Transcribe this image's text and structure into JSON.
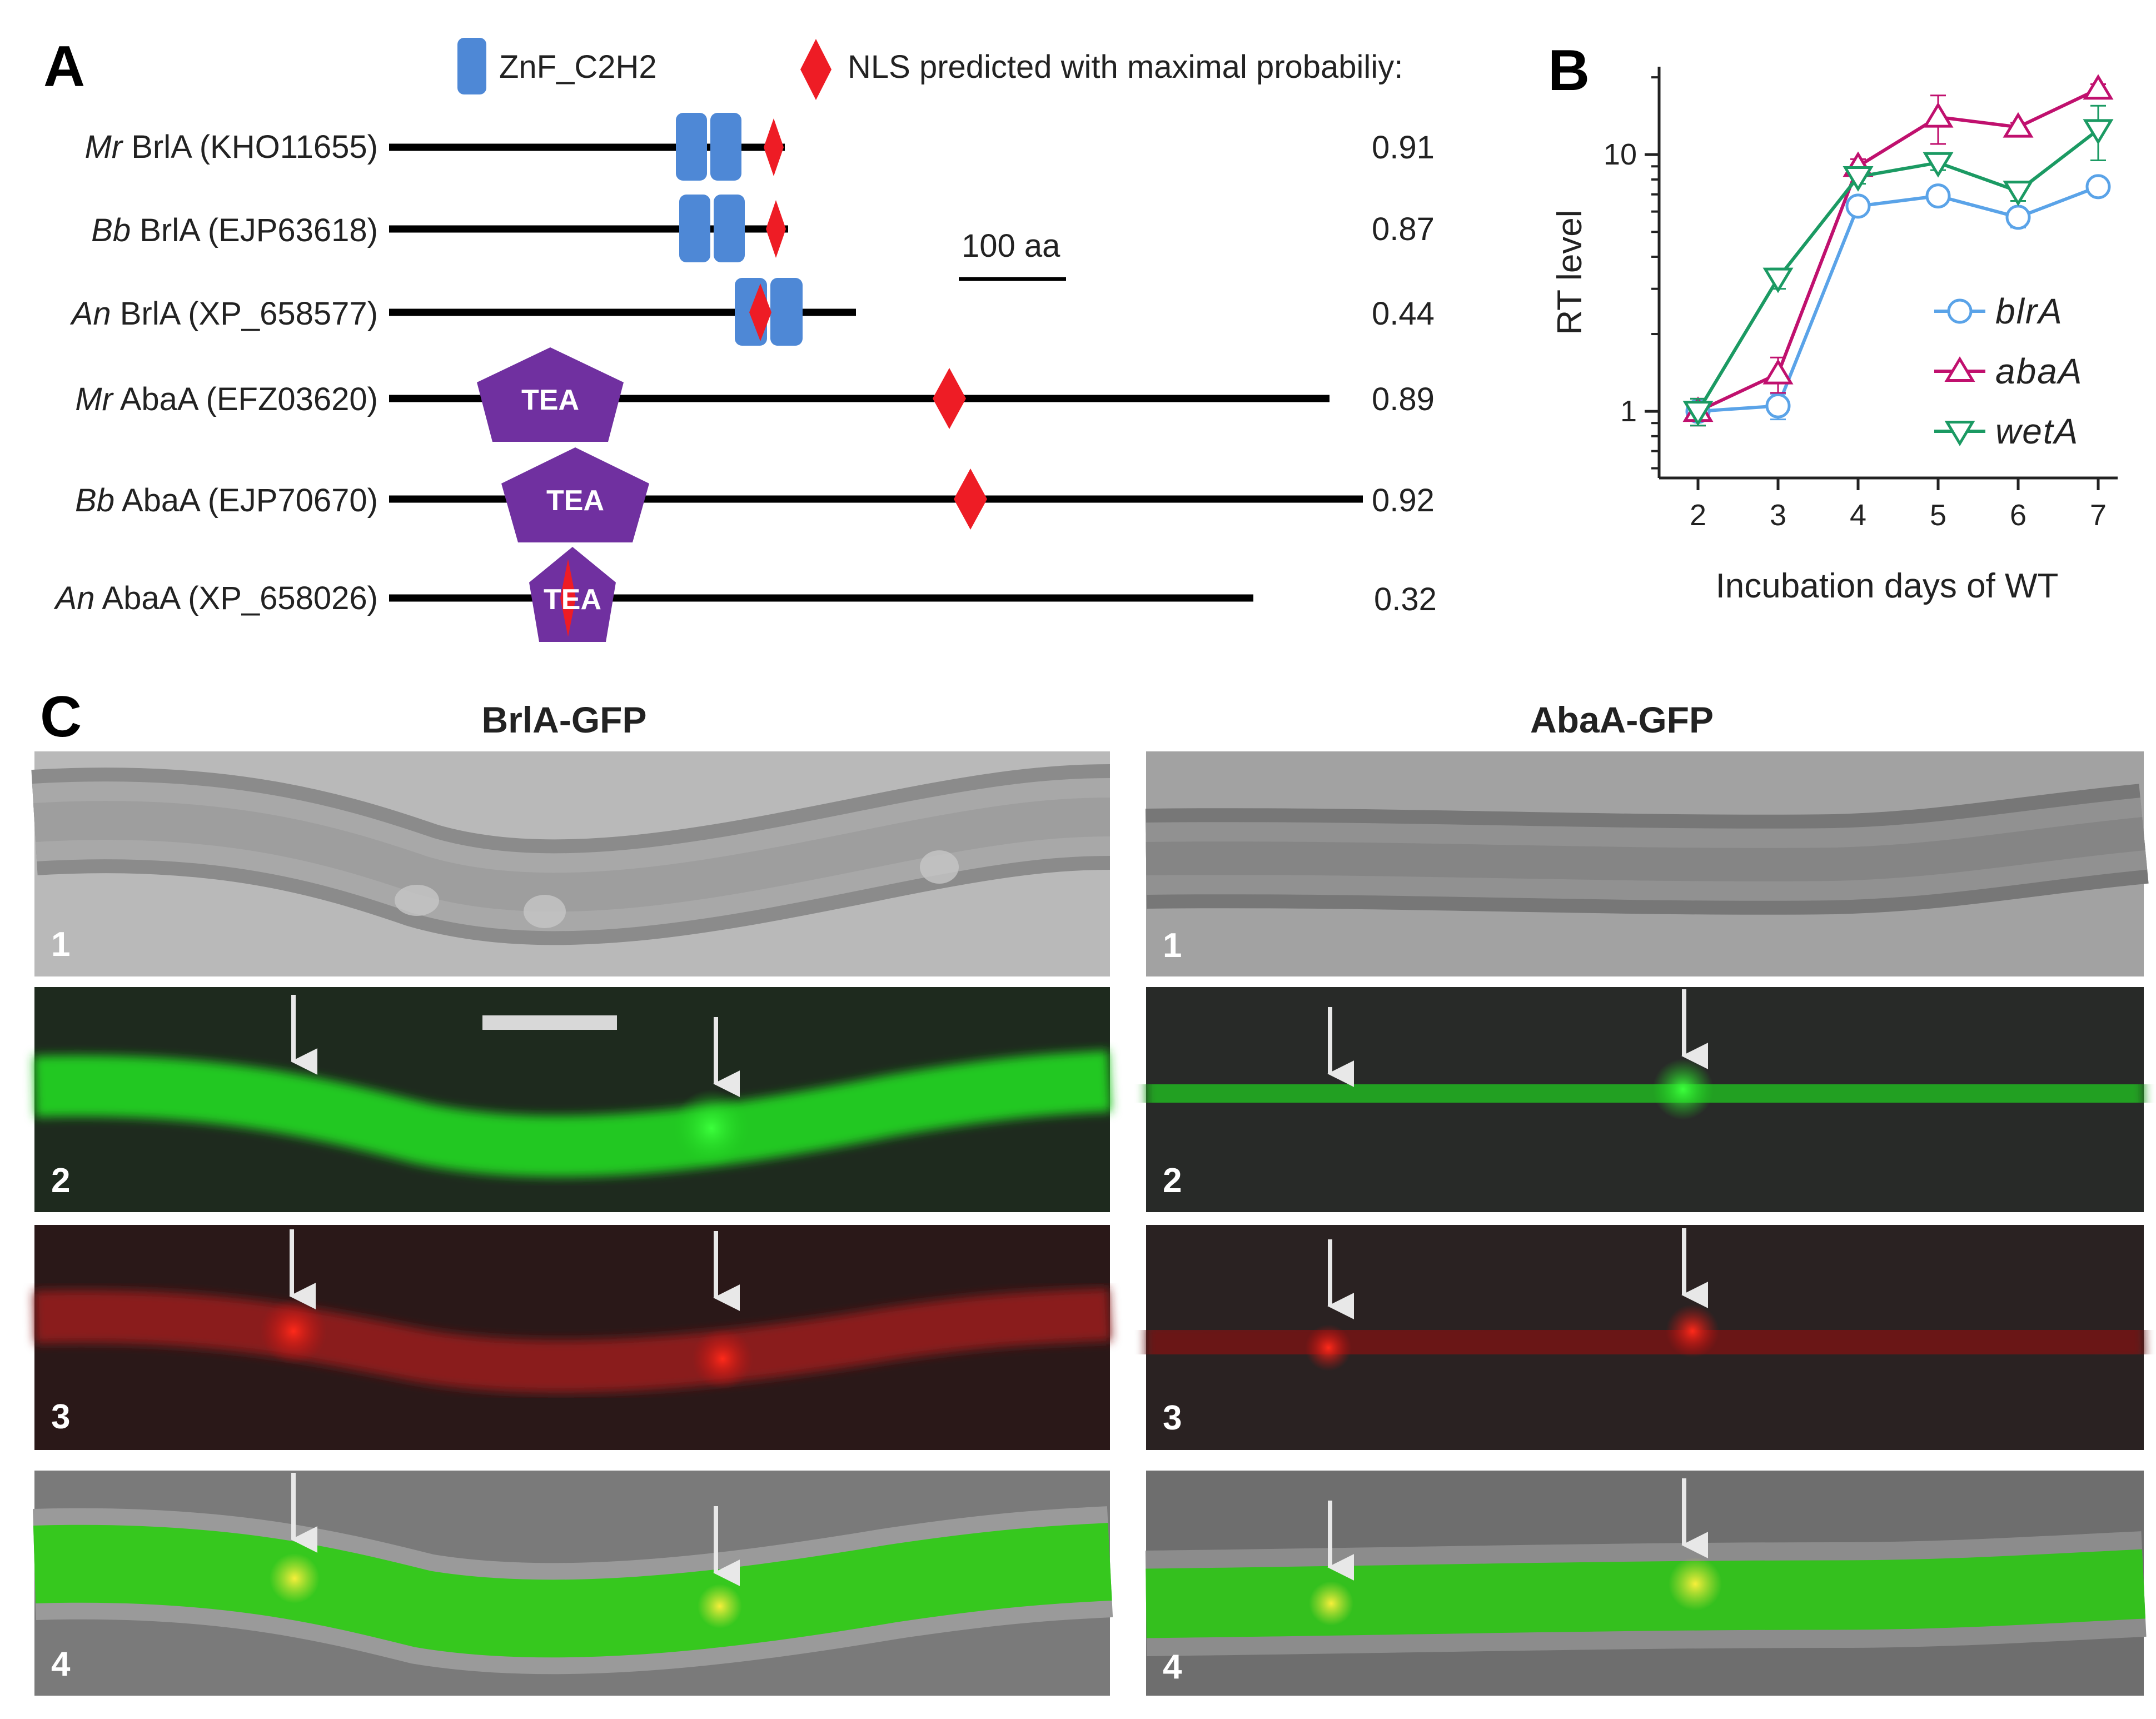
{
  "panels": {
    "a": "A",
    "b": "B",
    "c": "C"
  },
  "colors": {
    "znf": "#4e88d6",
    "nls": "#ee1c25",
    "tea": "#7030a0",
    "blrA": "#5aa3e8",
    "abaA": "#c0106e",
    "wetA": "#1b9a63"
  },
  "panel_a": {
    "legend": {
      "znf_label": "ZnF_C2H2",
      "nls_label": "NLS predicted with maximal  probabiliy:"
    },
    "scale_bar_label": "100 aa",
    "domain_label": "TEA",
    "proteins": [
      {
        "species": "Mr",
        "name": " BrlA (KHO11655)",
        "prob": "0.91",
        "icon": "znf-domain-icon"
      },
      {
        "species": "Bb",
        "name": " BrlA (EJP63618)",
        "prob": "0.87",
        "icon": "znf-domain-icon"
      },
      {
        "species": "An",
        "name": " BrlA (XP_658577)",
        "prob": "0.44",
        "icon": "znf-domain-icon"
      },
      {
        "species": "Mr",
        "name": " AbaA (EFZ03620)",
        "prob": "0.89",
        "icon": "tea-domain-icon"
      },
      {
        "species": "Bb",
        "name": " AbaA (EJP70670)",
        "prob": "0.92",
        "icon": "tea-domain-icon"
      },
      {
        "species": "An",
        "name": " AbaA (XP_658026)",
        "prob": "0.32",
        "icon": "tea-domain-icon"
      }
    ]
  },
  "chart_data": {
    "type": "line",
    "title": "",
    "xlabel": "Incubation days of WT",
    "ylabel": "RT level",
    "yscale": "log",
    "x": [
      2,
      3,
      4,
      5,
      6,
      7
    ],
    "ylim": [
      0.55,
      22
    ],
    "yticks": [
      1,
      10
    ],
    "ytick_labels": [
      "1",
      "10"
    ],
    "legend_position": "right",
    "series": [
      {
        "name": "blrA",
        "marker": "circle",
        "values": [
          1.0,
          1.05,
          6.3,
          6.9,
          5.7,
          7.5
        ],
        "errors": [
          0.08,
          0.12,
          0.3,
          0.3,
          0.5,
          0.4
        ]
      },
      {
        "name": "abaA",
        "marker": "triangle-up",
        "values": [
          1.0,
          1.4,
          9.0,
          14.0,
          12.8,
          18.0
        ],
        "errors": [
          0.12,
          0.22,
          0.6,
          3.0,
          0.5,
          0.8
        ]
      },
      {
        "name": "wetA",
        "marker": "triangle-down",
        "values": [
          1.0,
          3.3,
          8.2,
          9.3,
          7.2,
          12.5
        ],
        "errors": [
          0.12,
          0.3,
          0.5,
          0.6,
          0.6,
          3.0
        ]
      }
    ]
  },
  "panel_c": {
    "columns": [
      "BrlA-GFP",
      "AbaA-GFP"
    ],
    "row_numbers": [
      "1",
      "2",
      "3",
      "4"
    ]
  }
}
